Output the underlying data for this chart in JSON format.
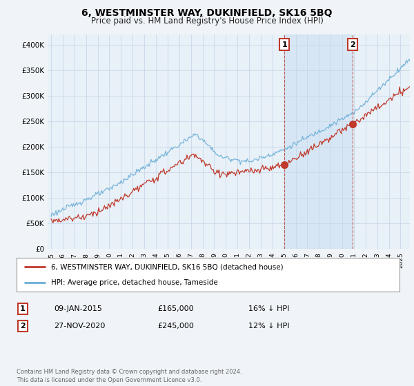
{
  "title": "6, WESTMINSTER WAY, DUKINFIELD, SK16 5BQ",
  "subtitle": "Price paid vs. HM Land Registry's House Price Index (HPI)",
  "bg_color": "#f0f4f8",
  "plot_bg_color": "#e8f0f8",
  "highlight_bg": "#dbe8f5",
  "grid_color": "#c8d8e8",
  "hpi_color": "#6aaed6",
  "price_color": "#c0392b",
  "annotation_box_color": "#c0392b",
  "legend_entries": [
    "6, WESTMINSTER WAY, DUKINFIELD, SK16 5BQ (detached house)",
    "HPI: Average price, detached house, Tameside"
  ],
  "table_rows": [
    [
      "1",
      "09-JAN-2015",
      "£165,000",
      "16% ↓ HPI"
    ],
    [
      "2",
      "27-NOV-2020",
      "£245,000",
      "12% ↓ HPI"
    ]
  ],
  "footer": "Contains HM Land Registry data © Crown copyright and database right 2024.\nThis data is licensed under the Open Government Licence v3.0.",
  "ylim": [
    0,
    420000
  ],
  "yticks": [
    0,
    50000,
    100000,
    150000,
    200000,
    250000,
    300000,
    350000,
    400000
  ],
  "xlim": [
    1994.7,
    2025.8
  ],
  "sale1_x": 2015.03,
  "sale1_y": 165000,
  "sale2_x": 2020.9,
  "sale2_y": 245000,
  "xticks": [
    1995,
    1996,
    1997,
    1998,
    1999,
    2000,
    2001,
    2002,
    2003,
    2004,
    2005,
    2006,
    2007,
    2008,
    2009,
    2010,
    2011,
    2012,
    2013,
    2014,
    2015,
    2016,
    2017,
    2018,
    2019,
    2020,
    2021,
    2022,
    2023,
    2024,
    2025
  ]
}
